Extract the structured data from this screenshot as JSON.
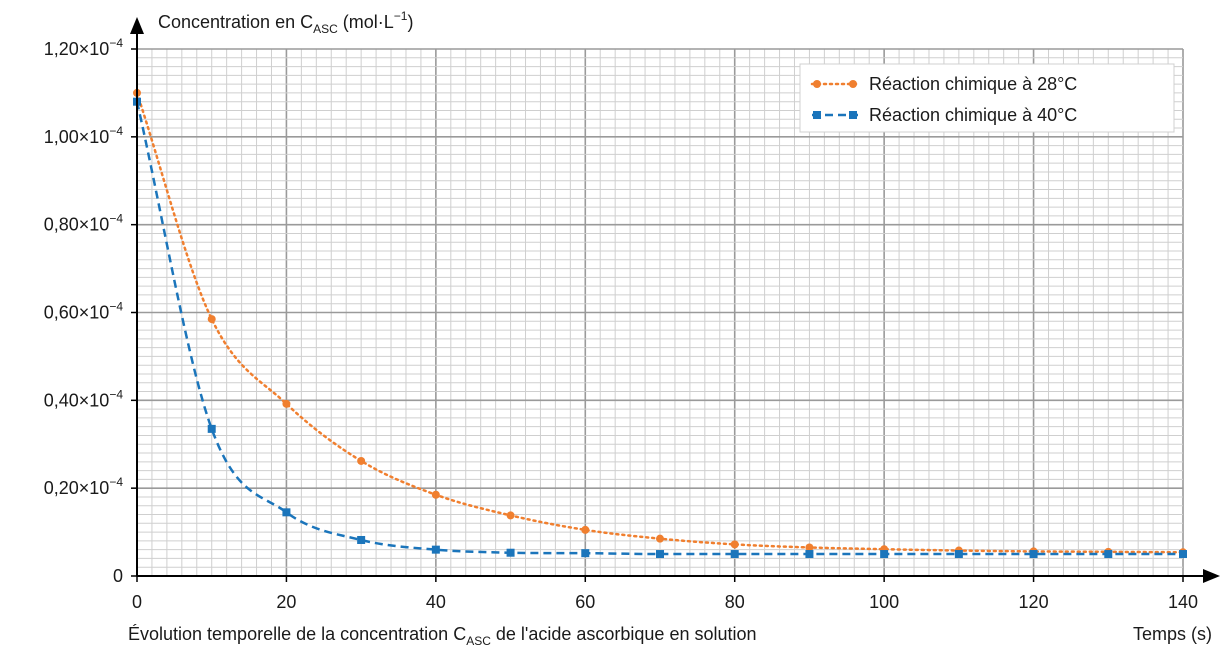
{
  "chart_data": {
    "type": "line",
    "ylabel": {
      "prefix": "Concentration en C",
      "subscript": "ASC",
      "unit_prefix": " (mol·L",
      "unit_sup": "−1",
      "unit_suffix": ")"
    },
    "xlabel": "Temps (s)",
    "caption": {
      "prefix": "Évolution temporelle de la concentration C",
      "subscript": "ASC",
      "suffix": " de l'acide ascorbique en solution"
    },
    "xlim": [
      0,
      140
    ],
    "ylim": [
      0,
      0.00012
    ],
    "x_ticks": [
      0,
      20,
      40,
      60,
      80,
      100,
      120,
      140
    ],
    "y_ticks": [
      {
        "value": 0,
        "mantissa": "0",
        "exp": ""
      },
      {
        "value": 2e-05,
        "mantissa": "0,20×10",
        "exp": "−4"
      },
      {
        "value": 4e-05,
        "mantissa": "0,40×10",
        "exp": "−4"
      },
      {
        "value": 6e-05,
        "mantissa": "0,60×10",
        "exp": "−4"
      },
      {
        "value": 8e-05,
        "mantissa": "0,80×10",
        "exp": "−4"
      },
      {
        "value": 0.0001,
        "mantissa": "1,00×10",
        "exp": "−4"
      },
      {
        "value": 0.00012,
        "mantissa": "1,20×10",
        "exp": "−4"
      }
    ],
    "grid": true,
    "legend_position": "top-right",
    "series": [
      {
        "name": "Réaction chimique à 28°C",
        "color": "#f07f2f",
        "marker": "circle",
        "linestyle": "dotted",
        "x": [
          0,
          10,
          20,
          30,
          40,
          50,
          60,
          70,
          80,
          90,
          100,
          110,
          120,
          130,
          140
        ],
        "y": [
          0.00011,
          5.85e-05,
          3.92e-05,
          2.62e-05,
          1.85e-05,
          1.38e-05,
          1.05e-05,
          8.5e-06,
          7.2e-06,
          6.5e-06,
          6.1e-06,
          5.8e-06,
          5.6e-06,
          5.5e-06,
          5.4e-06
        ]
      },
      {
        "name": "Réaction chimique à 40°C",
        "color": "#1b75bb",
        "marker": "square",
        "linestyle": "dashed",
        "x": [
          0,
          10,
          20,
          30,
          40,
          50,
          60,
          70,
          80,
          90,
          100,
          110,
          120,
          130,
          140
        ],
        "y": [
          0.000108,
          3.35e-05,
          1.45e-05,
          8.2e-06,
          6e-06,
          5.3e-06,
          5.2e-06,
          5e-06,
          5e-06,
          5e-06,
          5e-06,
          5e-06,
          5e-06,
          5e-06,
          5e-06
        ]
      }
    ]
  }
}
